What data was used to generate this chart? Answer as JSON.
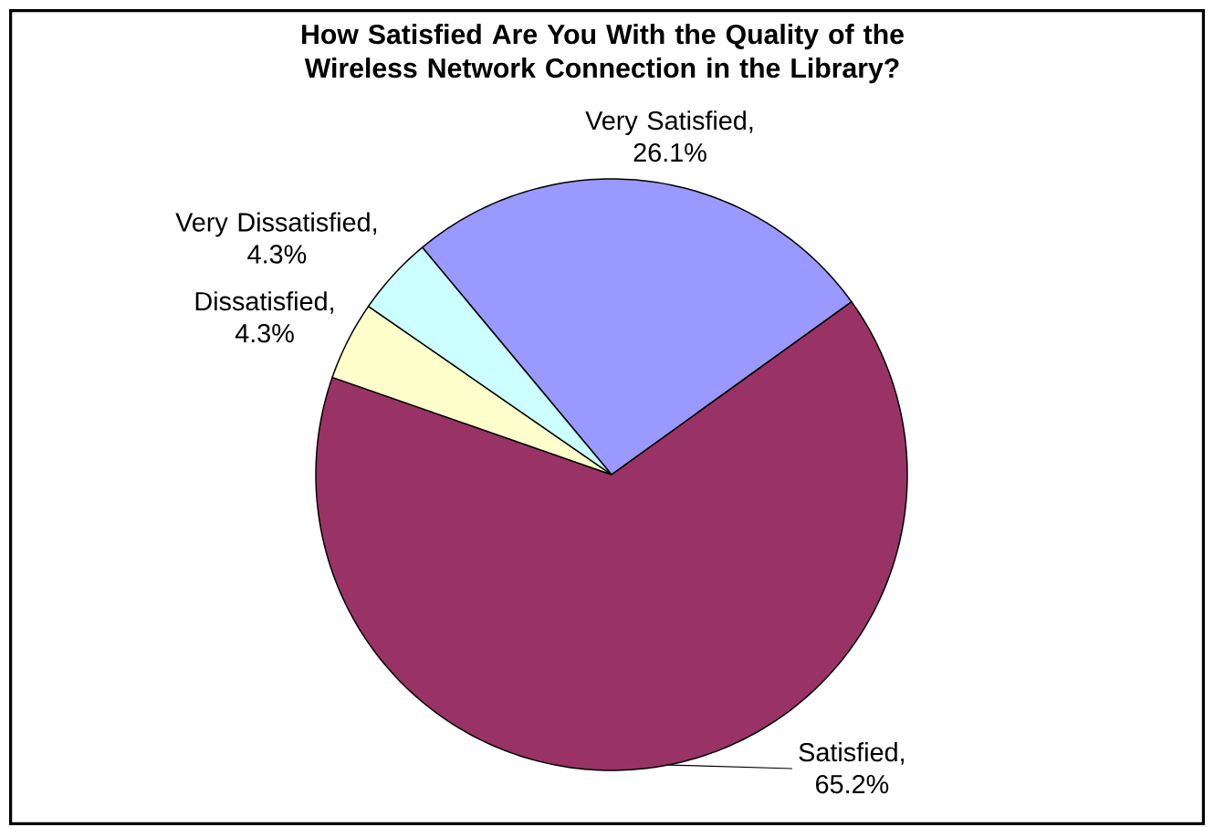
{
  "chart_data": {
    "type": "pie",
    "title": "How Satisfied Are You With the Quality of the Wireless Network Connection in the Library?",
    "categories": [
      null,
      null,
      null,
      null
    ],
    "values": [
      26.1,
      65.2,
      4.3,
      4.3
    ],
    "colors": [
      "#9999ff",
      "#993366",
      "#ffffcc",
      "#ccffff"
    ],
    "value_labels": [
      "Very Satisfied, 26.1%",
      "Satisfied, 65.2%",
      "Dissatisfied, 4.3%",
      "Very Dissatisfied, 4.3%"
    ]
  }
}
